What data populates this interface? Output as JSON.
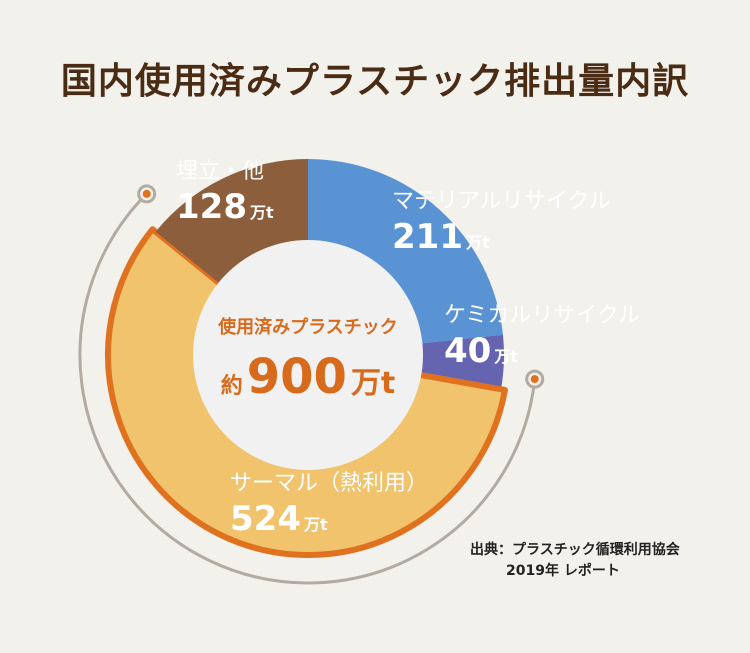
{
  "title": "国内使用済みプラスチック排出量内訳",
  "chart_data": {
    "type": "pie",
    "style": "donut",
    "unit": "万t",
    "categories": [
      "マテリアルリサイクル",
      "ケミカルリサイクル",
      "サーマル（熱利用）",
      "埋立・他"
    ],
    "values": [
      211,
      40,
      524,
      128
    ],
    "colors": [
      "#5a93d3",
      "#6464b0",
      "#f0c36c",
      "#8c5e3c"
    ],
    "highlight_color": "#e0721f",
    "center": {
      "caption": "使用済みプラスチック",
      "prefix": "約",
      "total": "900",
      "unit": "万t"
    }
  },
  "source": {
    "line1": "出典：プラスチック循環利用協会",
    "line2": "2019年 レポート"
  }
}
